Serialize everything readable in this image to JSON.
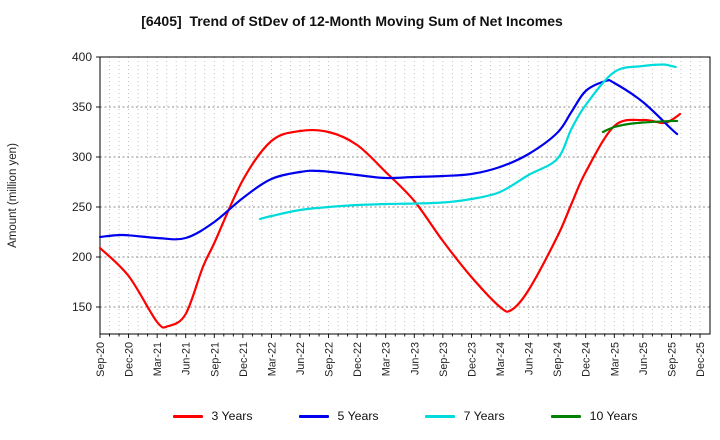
{
  "chart_data": {
    "type": "line",
    "title": "[6405]  Trend of StDev of 12-Month Moving Sum of Net Incomes",
    "ylabel": "Amount (million yen)",
    "ylim": [
      123,
      400
    ],
    "y_ticks": [
      150,
      200,
      250,
      300,
      350,
      400
    ],
    "x_unit": "quarters since Sep-2020 (fractional = months)",
    "xlim": [
      0,
      21.35
    ],
    "x_tick_labels": [
      "Sep-20",
      "Dec-20",
      "Mar-21",
      "Jun-21",
      "Sep-21",
      "Dec-21",
      "Mar-22",
      "Jun-22",
      "Sep-22",
      "Dec-22",
      "Mar-23",
      "Jun-23",
      "Sep-23",
      "Dec-23",
      "Mar-24",
      "Jun-24",
      "Sep-24",
      "Dec-24",
      "Mar-25",
      "Jun-25",
      "Sep-25",
      "Dec-25"
    ],
    "grid": {
      "vertical": "monthly-dotted",
      "horizontal": "every-50-dotted"
    },
    "legend_position": "bottom",
    "series": [
      {
        "name": "3 Years",
        "color": "#ff0000",
        "points": [
          [
            0,
            209
          ],
          [
            1,
            181
          ],
          [
            2,
            135
          ],
          [
            2.4,
            131
          ],
          [
            3,
            143
          ],
          [
            3.6,
            190
          ],
          [
            4,
            214
          ],
          [
            5,
            277
          ],
          [
            6,
            316
          ],
          [
            7,
            326
          ],
          [
            8,
            325
          ],
          [
            9,
            312
          ],
          [
            10,
            285
          ],
          [
            11,
            256
          ],
          [
            12,
            216
          ],
          [
            13,
            180
          ],
          [
            14,
            150
          ],
          [
            14.4,
            147
          ],
          [
            15,
            167
          ],
          [
            16,
            220
          ],
          [
            16.5,
            253
          ],
          [
            17,
            285
          ],
          [
            18,
            331
          ],
          [
            19,
            337
          ],
          [
            19.7,
            334
          ],
          [
            20,
            337
          ],
          [
            20.3,
            343
          ]
        ]
      },
      {
        "name": "5 Years",
        "color": "#0000ee",
        "points": [
          [
            0,
            220
          ],
          [
            0.8,
            222
          ],
          [
            2,
            219
          ],
          [
            3,
            219
          ],
          [
            4,
            235
          ],
          [
            5,
            259
          ],
          [
            6,
            278
          ],
          [
            7,
            285
          ],
          [
            7.7,
            286
          ],
          [
            9,
            282
          ],
          [
            10,
            279
          ],
          [
            11,
            280
          ],
          [
            12,
            281
          ],
          [
            13,
            283
          ],
          [
            14,
            290
          ],
          [
            15,
            303
          ],
          [
            16,
            324
          ],
          [
            16.5,
            345
          ],
          [
            17,
            366
          ],
          [
            17.7,
            376
          ],
          [
            18,
            374
          ],
          [
            19,
            355
          ],
          [
            20,
            328
          ],
          [
            20.2,
            323
          ]
        ]
      },
      {
        "name": "7 Years",
        "color": "#00dcdc",
        "points": [
          [
            5.6,
            238
          ],
          [
            6,
            241
          ],
          [
            7,
            247
          ],
          [
            8,
            250
          ],
          [
            9,
            252
          ],
          [
            10,
            253
          ],
          [
            11,
            253.5
          ],
          [
            12,
            254.5
          ],
          [
            13,
            258
          ],
          [
            14,
            265
          ],
          [
            15,
            282
          ],
          [
            16,
            298
          ],
          [
            16.5,
            328
          ],
          [
            17,
            352
          ],
          [
            18,
            385
          ],
          [
            19,
            391
          ],
          [
            19.7,
            392.5
          ],
          [
            20,
            391
          ],
          [
            20.15,
            390
          ]
        ]
      },
      {
        "name": "10 Years",
        "color": "#008000",
        "points": [
          [
            17.6,
            325
          ],
          [
            18,
            330
          ],
          [
            18.5,
            333
          ],
          [
            19,
            334.5
          ],
          [
            20,
            336
          ],
          [
            20.2,
            336
          ]
        ]
      }
    ]
  }
}
